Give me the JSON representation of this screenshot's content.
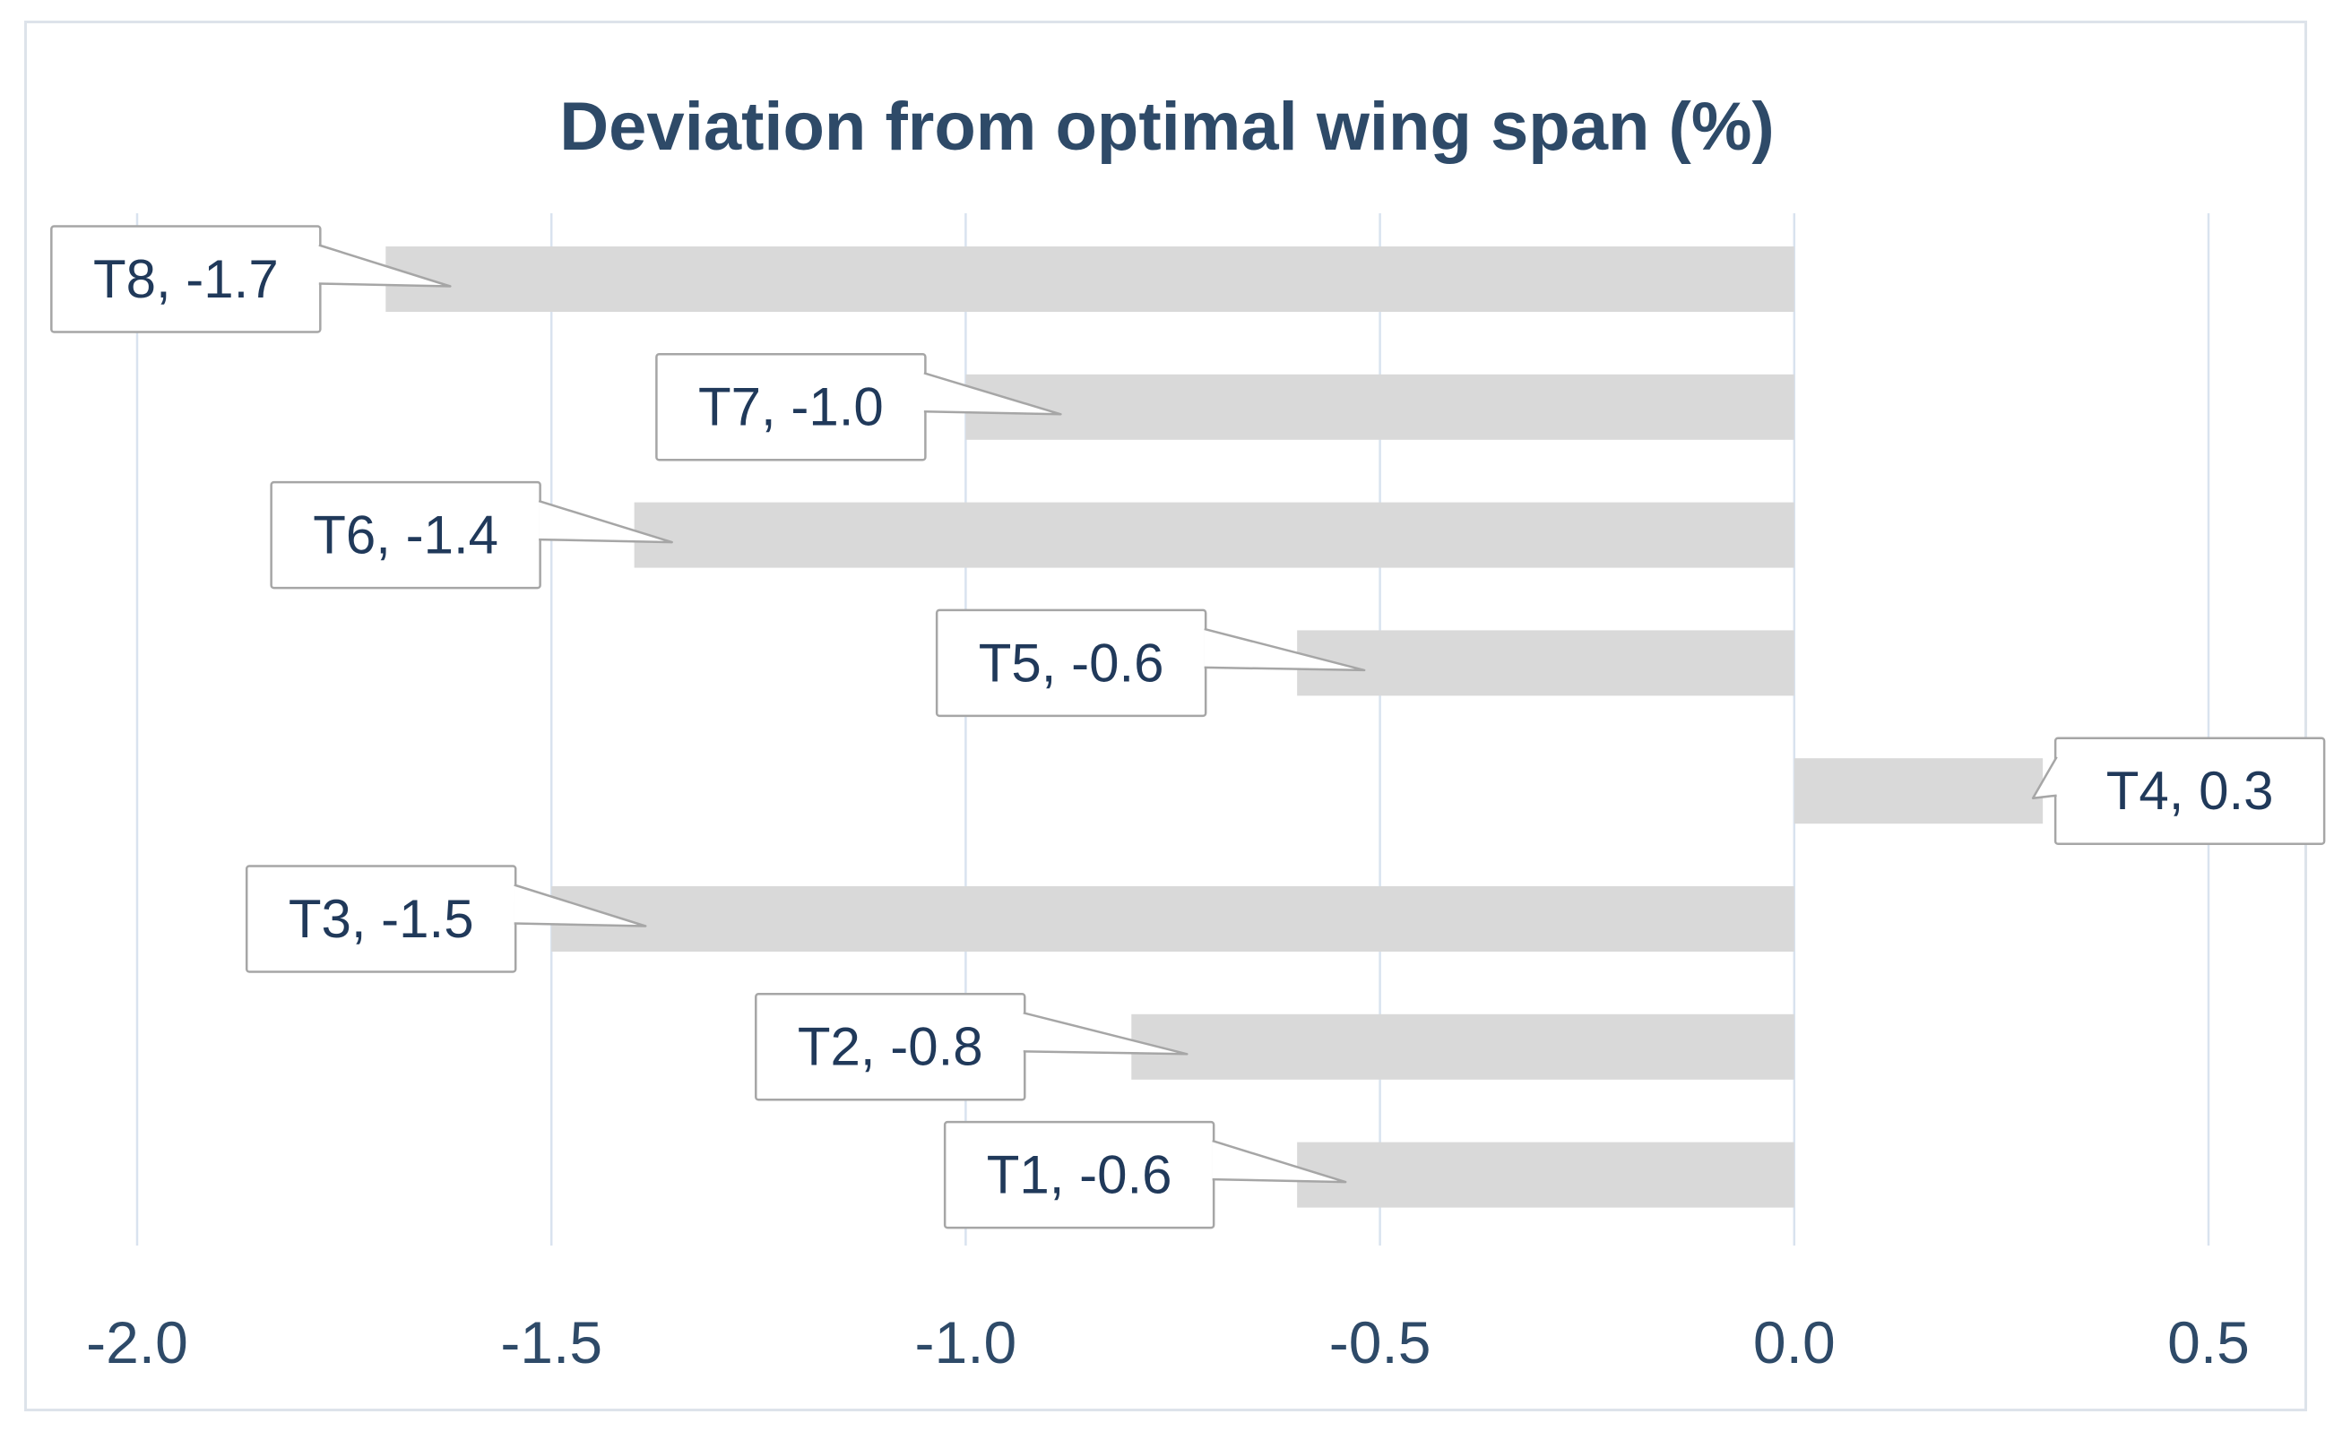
{
  "chart_data": {
    "type": "bar",
    "orientation": "horizontal",
    "title": "Deviation from optimal wing span (%)",
    "categories": [
      "T8",
      "T7",
      "T6",
      "T5",
      "T4",
      "T3",
      "T2",
      "T1"
    ],
    "values": [
      -1.7,
      -1.0,
      -1.4,
      -0.6,
      0.3,
      -1.5,
      -0.8,
      -0.6
    ],
    "data_labels": [
      "T8, -1.7",
      "T7, -1.0",
      "T6, -1.4",
      "T5, -0.6",
      "T4, 0.3",
      "T3, -1.5",
      "T2, -0.8",
      "T1, -0.6"
    ],
    "x_ticks": [
      "-2.0",
      "-1.5",
      "-1.0",
      "-0.5",
      "0.0",
      "0.5"
    ],
    "x_tick_values": [
      -2.0,
      -1.5,
      -1.0,
      -0.5,
      0.0,
      0.5
    ],
    "xlim": [
      -2.0,
      0.5
    ],
    "baseline": 0.0,
    "grid": "vertical-only",
    "legend": "none",
    "label_style": "rectangular-callout",
    "colors": {
      "bar": "#d9d9d9",
      "gridline": "#d9e3ef",
      "title_text": "#2e4a68",
      "tick_text": "#2e4a68",
      "label_text": "#20395a",
      "callout_border": "#a6a6a6",
      "callout_fill": "#ffffff",
      "chart_border": "#dde3ea",
      "background": "#ffffff"
    }
  }
}
